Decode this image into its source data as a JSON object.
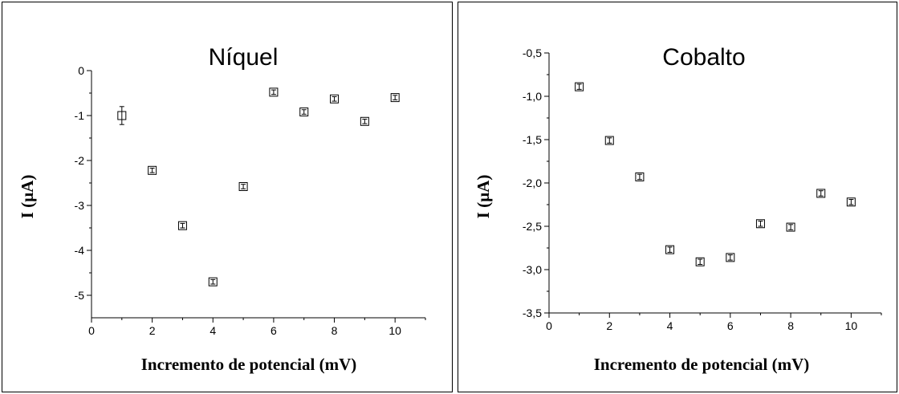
{
  "chart_data": [
    {
      "type": "scatter",
      "title": "Níquel",
      "xlabel": "Incremento de potencial (mV)",
      "ylabel": "I (µA)",
      "xlim": [
        0,
        11
      ],
      "ylim": [
        -5.5,
        0
      ],
      "xticks": [
        0,
        2,
        4,
        6,
        8,
        10
      ],
      "xtick_labels": [
        "0",
        "2",
        "4",
        "6",
        "8",
        "10"
      ],
      "yticks": [
        0,
        -1,
        -2,
        -3,
        -4,
        -5
      ],
      "ytick_labels": [
        "0",
        "-1",
        "-2",
        "-3",
        "-4",
        "-5"
      ],
      "x": [
        1,
        2,
        3,
        4,
        5,
        6,
        7,
        8,
        9,
        10
      ],
      "y": [
        -1.0,
        -2.22,
        -3.45,
        -4.7,
        -2.58,
        -0.48,
        -0.92,
        -0.63,
        -1.13,
        -0.6
      ],
      "error": [
        0.2,
        0.05,
        0.05,
        0.05,
        0.05,
        0.05,
        0.05,
        0.05,
        0.05,
        0.05
      ],
      "marker": "open-square",
      "grid": false
    },
    {
      "type": "scatter",
      "title": "Cobalto",
      "xlabel": "Incremento de potencial (mV)",
      "ylabel": "I (µA)",
      "xlim": [
        0,
        11
      ],
      "ylim": [
        -3.5,
        -0.5
      ],
      "xticks": [
        0,
        2,
        4,
        6,
        8,
        10
      ],
      "xtick_labels": [
        "0",
        "2",
        "4",
        "6",
        "8",
        "10"
      ],
      "yticks": [
        -0.5,
        -1.0,
        -1.5,
        -2.0,
        -2.5,
        -3.0,
        -3.5
      ],
      "ytick_labels": [
        "-0,5",
        "-1,0",
        "-1,5",
        "-2,0",
        "-2,5",
        "-3,0",
        "-3,5"
      ],
      "x": [
        1,
        2,
        3,
        4,
        5,
        6,
        7,
        8,
        9,
        10
      ],
      "y": [
        -0.89,
        -1.51,
        -1.93,
        -2.77,
        -2.91,
        -2.86,
        -2.47,
        -2.51,
        -2.12,
        -2.22
      ],
      "error": [
        0.03,
        0.03,
        0.03,
        0.03,
        0.03,
        0.03,
        0.03,
        0.03,
        0.03,
        0.03
      ],
      "marker": "open-square",
      "grid": false
    }
  ]
}
